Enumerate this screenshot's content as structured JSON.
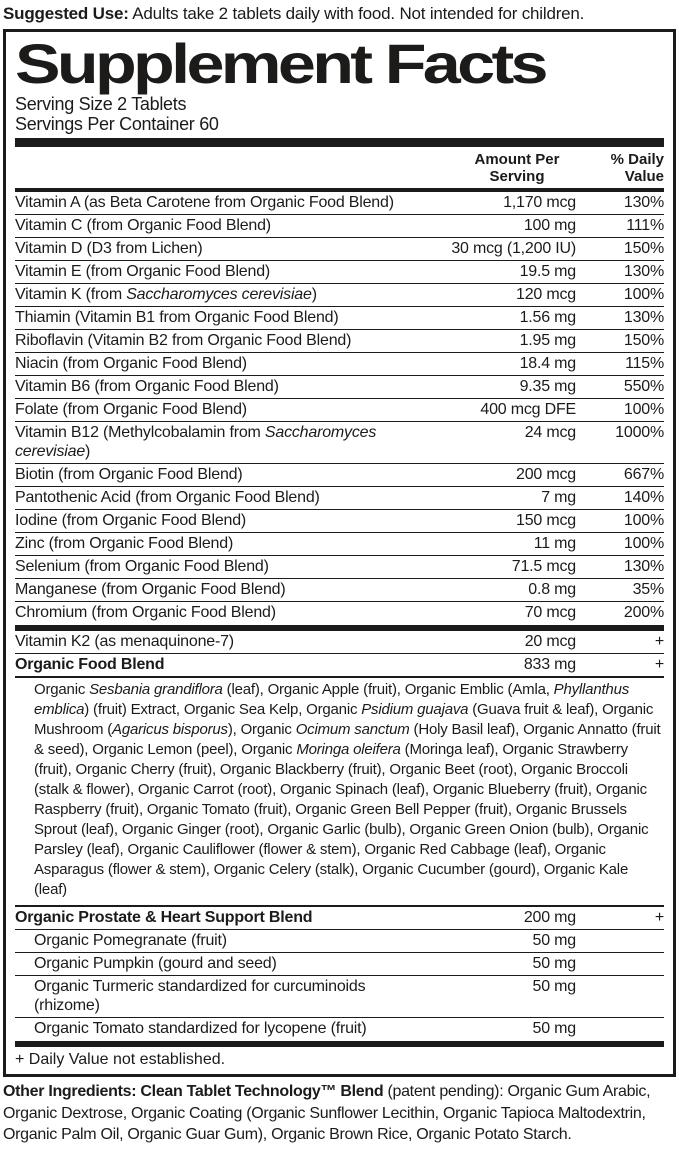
{
  "colors": {
    "ink": "#1c1b1a",
    "background": "#ffffff"
  },
  "suggested_use": [
    {
      "t": "Suggested Use:",
      "b": true
    },
    {
      "t": " Adults take 2 tablets daily with food. Not intended for children."
    }
  ],
  "panel": {
    "title": "Supplement Facts",
    "serving_size": "Serving Size 2 Tablets",
    "servings_per_container": "Servings Per Container 60",
    "columns": {
      "amount": "Amount Per Serving",
      "daily_value": "% Daily Value"
    },
    "items": [
      {
        "type": "row",
        "name": [
          {
            "t": "Vitamin A (as Beta Carotene from Organic Food Blend)"
          }
        ],
        "amount": "1,170 mcg",
        "dv": "130%"
      },
      {
        "type": "row",
        "name": [
          {
            "t": "Vitamin C (from Organic Food Blend)"
          }
        ],
        "amount": "100 mg",
        "dv": "111%"
      },
      {
        "type": "row",
        "name": [
          {
            "t": "Vitamin D (D3 from Lichen)"
          }
        ],
        "amount": "30 mcg (1,200 IU)",
        "dv": "150%"
      },
      {
        "type": "row",
        "name": [
          {
            "t": "Vitamin E (from Organic Food Blend)"
          }
        ],
        "amount": "19.5 mg",
        "dv": "130%"
      },
      {
        "type": "row",
        "name": [
          {
            "t": "Vitamin K (from "
          },
          {
            "t": "Saccharomyces cerevisiae",
            "i": true
          },
          {
            "t": ")"
          }
        ],
        "amount": "120 mcg",
        "dv": "100%"
      },
      {
        "type": "row",
        "name": [
          {
            "t": "Thiamin (Vitamin B1 from Organic Food Blend)"
          }
        ],
        "amount": "1.56 mg",
        "dv": "130%"
      },
      {
        "type": "row",
        "name": [
          {
            "t": "Riboflavin (Vitamin B2 from Organic Food Blend)"
          }
        ],
        "amount": "1.95 mg",
        "dv": "150%"
      },
      {
        "type": "row",
        "name": [
          {
            "t": "Niacin (from Organic Food Blend)"
          }
        ],
        "amount": "18.4 mg",
        "dv": "115%"
      },
      {
        "type": "row",
        "name": [
          {
            "t": "Vitamin B6 (from Organic Food Blend)"
          }
        ],
        "amount": "9.35 mg",
        "dv": "550%"
      },
      {
        "type": "row",
        "name": [
          {
            "t": "Folate (from Organic Food Blend)"
          }
        ],
        "amount": "400 mcg DFE",
        "dv": "100%"
      },
      {
        "type": "row",
        "name": [
          {
            "t": "Vitamin B12 (Methylcobalamin from "
          },
          {
            "t": "Saccharomyces cerevisiae",
            "i": true
          },
          {
            "t": ")"
          }
        ],
        "amount": "24 mcg",
        "dv": "1000%"
      },
      {
        "type": "row",
        "name": [
          {
            "t": "Biotin (from Organic Food Blend)"
          }
        ],
        "amount": "200 mcg",
        "dv": "667%"
      },
      {
        "type": "row",
        "name": [
          {
            "t": "Pantothenic Acid (from Organic Food Blend)"
          }
        ],
        "amount": "7 mg",
        "dv": "140%"
      },
      {
        "type": "row",
        "name": [
          {
            "t": "Iodine (from Organic Food Blend)"
          }
        ],
        "amount": "150 mcg",
        "dv": "100%"
      },
      {
        "type": "row",
        "name": [
          {
            "t": "Zinc (from Organic Food Blend)"
          }
        ],
        "amount": "11 mg",
        "dv": "100%"
      },
      {
        "type": "row",
        "name": [
          {
            "t": "Selenium (from Organic Food Blend)"
          }
        ],
        "amount": "71.5 mcg",
        "dv": "130%"
      },
      {
        "type": "row",
        "name": [
          {
            "t": "Manganese (from Organic Food Blend)"
          }
        ],
        "amount": "0.8 mg",
        "dv": "35%"
      },
      {
        "type": "row",
        "name": [
          {
            "t": "Chromium (from Organic Food Blend)"
          }
        ],
        "amount": "70 mcg",
        "dv": "200%"
      },
      {
        "type": "bar"
      },
      {
        "type": "row",
        "name": [
          {
            "t": "Vitamin K2 (as menaquinone-7)"
          }
        ],
        "amount": "20 mcg",
        "dv": "+"
      },
      {
        "type": "row",
        "name": [
          {
            "t": "Organic Food Blend",
            "b": true
          }
        ],
        "amount": "833 mg",
        "dv": "+"
      },
      {
        "type": "paragraph",
        "segments": [
          {
            "t": "Organic "
          },
          {
            "t": "Sesbania grandiflora",
            "i": true
          },
          {
            "t": " (leaf), Organic Apple (fruit), Organic Emblic (Amla, "
          },
          {
            "t": "Phyllanthus emblica",
            "i": true
          },
          {
            "t": ") (fruit) Extract, Organic Sea Kelp, Organic "
          },
          {
            "t": "Psidium guajava",
            "i": true
          },
          {
            "t": " (Guava fruit & leaf), Organic Mushroom ("
          },
          {
            "t": "Agaricus bisporus",
            "i": true
          },
          {
            "t": "), Organic "
          },
          {
            "t": "Ocimum sanctum",
            "i": true
          },
          {
            "t": " (Holy Basil leaf), Organic Annatto (fruit & seed), Organic Lemon (peel), Organic "
          },
          {
            "t": "Moringa oleifera",
            "i": true
          },
          {
            "t": " (Moringa leaf), Organic Strawberry (fruit), Organic Cherry (fruit), Organic Blackberry (fruit), Organic Beet (root), Organic Broccoli (stalk & flower), Organic Carrot (root), Organic Spinach (leaf), Organic Blueberry (fruit), Organic Raspberry (fruit), Organic Tomato (fruit), Organic Green Bell Pepper (fruit), Organic Brussels Sprout (leaf), Organic Ginger (root), Organic Garlic (bulb), Organic Green Onion (bulb), Organic Parsley (leaf), Organic Cauliflower (flower & stem), Organic Red Cabbage (leaf), Organic Asparagus (flower & stem), Organic Celery (stalk), Organic Cucumber (gourd), Organic Kale (leaf)"
          }
        ]
      },
      {
        "type": "row",
        "rule": "medium",
        "name": [
          {
            "t": "Organic Prostate & Heart Support Blend",
            "b": true
          }
        ],
        "amount": "200 mg",
        "dv": "+"
      },
      {
        "type": "row",
        "indent": true,
        "name": [
          {
            "t": "Organic Pomegranate (fruit)"
          }
        ],
        "amount": "50 mg",
        "dv": ""
      },
      {
        "type": "row",
        "indent": true,
        "name": [
          {
            "t": "Organic Pumpkin (gourd and seed)"
          }
        ],
        "amount": "50 mg",
        "dv": ""
      },
      {
        "type": "row",
        "indent": true,
        "name": [
          {
            "t": "Organic Turmeric standardized for curcuminoids (rhizome)"
          }
        ],
        "amount": "50 mg",
        "dv": ""
      },
      {
        "type": "row",
        "indent": true,
        "name": [
          {
            "t": "Organic Tomato standardized for lycopene (fruit)"
          }
        ],
        "amount": "50 mg",
        "dv": ""
      },
      {
        "type": "bar",
        "size": "thin"
      }
    ],
    "footnote": "+ Daily Value not established."
  },
  "other_ingredients": [
    {
      "t": "Other Ingredients: Clean Tablet Technology™ Blend",
      "b": true
    },
    {
      "t": " (patent pending): Organic Gum Arabic, Organic Dextrose, Organic Coating (Organic Sunflower Lecithin, Organic Tapioca Maltodextrin, Organic Palm Oil, Organic Guar Gum), Organic Brown Rice, Organic Potato Starch."
    }
  ]
}
